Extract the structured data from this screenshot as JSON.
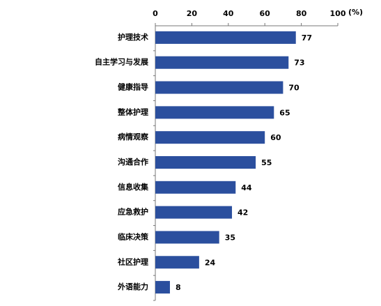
{
  "chart_data": {
    "type": "barh",
    "xlabel": "(%)",
    "categories": [
      "护理技术",
      "自主学习与发展",
      "健康指导",
      "整体护理",
      "病情观察",
      "沟通合作",
      "信息收集",
      "应急救护",
      "临床决策",
      "社区护理",
      "外语能力"
    ],
    "values": [
      77,
      73,
      70,
      65,
      60,
      55,
      44,
      42,
      35,
      24,
      8
    ],
    "color": "#2b4f9e",
    "xlim": [
      0,
      100
    ],
    "xticks": [
      0,
      20,
      40,
      60,
      80,
      100
    ]
  }
}
